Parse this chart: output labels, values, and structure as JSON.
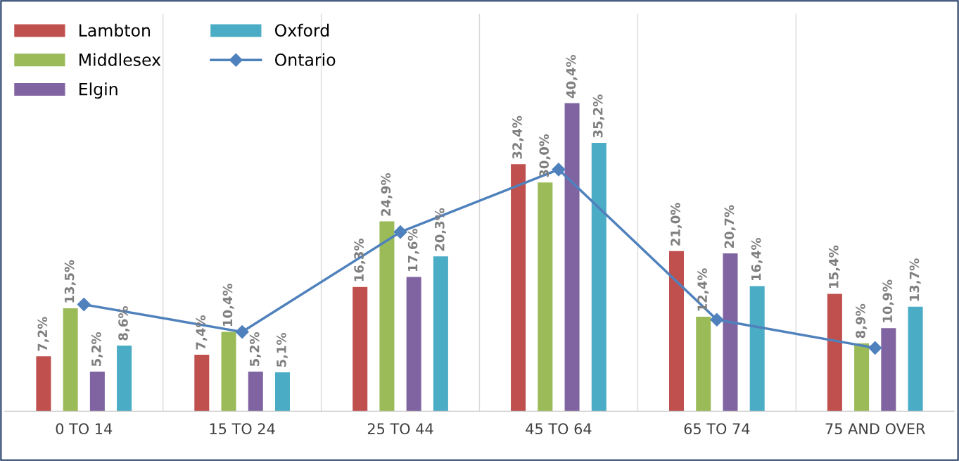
{
  "chart_data": {
    "type": "bar",
    "categories": [
      "0 TO 14",
      "15 TO 24",
      "25 TO 44",
      "45 TO 64",
      "65 TO 74",
      "75 AND OVER"
    ],
    "series": [
      {
        "name": "Lambton",
        "color": "#c0504d",
        "values": [
          7.2,
          7.4,
          16.3,
          32.4,
          21.0,
          15.4
        ],
        "value_labels": [
          "7,2%",
          "7,4%",
          "16,3%",
          "32,4%",
          "21,0%",
          "15,4%"
        ]
      },
      {
        "name": "Middlesex",
        "color": "#9bbb59",
        "values": [
          13.5,
          10.4,
          24.9,
          30.0,
          12.4,
          8.9
        ],
        "value_labels": [
          "13,5%",
          "10,4%",
          "24,9%",
          "30,0%",
          "12,4%",
          "8,9%"
        ]
      },
      {
        "name": "Elgin",
        "color": "#8064a2",
        "values": [
          5.2,
          5.2,
          17.6,
          40.4,
          20.7,
          10.9
        ],
        "value_labels": [
          "5,2%",
          "5,2%",
          "17,6%",
          "40,4%",
          "20,7%",
          "10,9%"
        ]
      },
      {
        "name": "Oxford",
        "color": "#4bacc6",
        "values": [
          8.6,
          5.1,
          20.3,
          35.2,
          16.4,
          13.7
        ],
        "value_labels": [
          "8,6%",
          "5,1%",
          "20,3%",
          "35,2%",
          "16,4%",
          "13,7%"
        ]
      },
      {
        "name": "Ontario",
        "type": "line",
        "color": "#4f81bd",
        "marker": "diamond",
        "values": [
          14.0,
          10.4,
          23.5,
          31.7,
          12.0,
          8.3
        ]
      }
    ],
    "grid": "x",
    "legend": "top left"
  }
}
